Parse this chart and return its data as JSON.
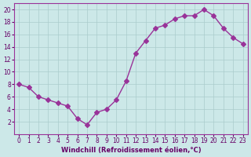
{
  "x": [
    0,
    1,
    2,
    3,
    4,
    5,
    6,
    7,
    8,
    9,
    10,
    11,
    12,
    13,
    14,
    15,
    16,
    17,
    18,
    19,
    20,
    21,
    22,
    23
  ],
  "y": [
    8,
    7.5,
    6,
    5.5,
    5,
    4.5,
    2.5,
    1.5,
    3.5,
    4,
    5.5,
    8.5,
    13,
    15,
    17,
    17.5,
    18.5,
    19,
    19,
    20,
    19,
    17,
    15.5,
    14.5
  ],
  "line_color": "#993399",
  "marker": "D",
  "marker_size": 3,
  "bg_color": "#cce8e8",
  "grid_color": "#aacccc",
  "xlabel": "Windchill (Refroidissement éolien,°C)",
  "xlabel_color": "#660066",
  "tick_color": "#660066",
  "ylim": [
    0,
    21
  ],
  "xlim": [
    -0.5,
    23.5
  ],
  "yticks": [
    2,
    4,
    6,
    8,
    10,
    12,
    14,
    16,
    18,
    20
  ],
  "xticks": [
    0,
    1,
    2,
    3,
    4,
    5,
    6,
    7,
    8,
    9,
    10,
    11,
    12,
    13,
    14,
    15,
    16,
    17,
    18,
    19,
    20,
    21,
    22,
    23
  ]
}
